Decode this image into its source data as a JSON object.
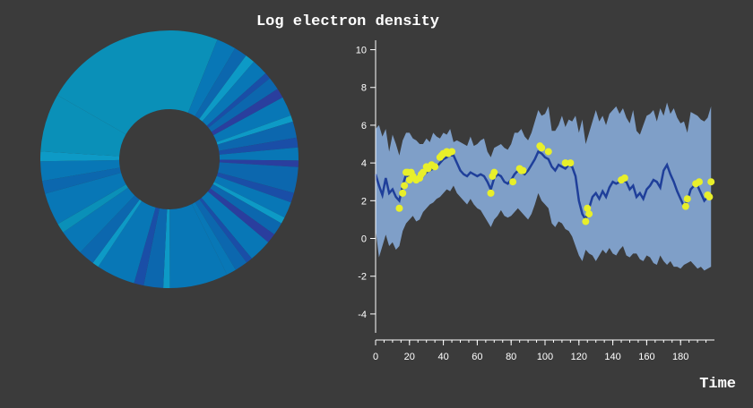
{
  "title": "Log electron density",
  "colors": {
    "background": "#3b3b3b",
    "band": "#7f9fc8",
    "mean_line": "#1f3f9a",
    "observed": "#e8ef2a",
    "axis": "#ffffff",
    "donut_palette": [
      "#0a90b8",
      "#0877b6",
      "#0c67ae",
      "#1a4ea7",
      "#2a3e9e",
      "#0d9ac6"
    ]
  },
  "chart_data": [
    {
      "type": "pie",
      "variant": "donut",
      "note_values": "segment sizes (unlabeled)",
      "slices": [
        {
          "value": 56,
          "color": "#0a90b8"
        },
        {
          "value": 6,
          "color": "#0877b6"
        },
        {
          "value": 4,
          "color": "#0c67ae"
        },
        {
          "value": 3,
          "color": "#0d9ac6"
        },
        {
          "value": 5,
          "color": "#0877b6"
        },
        {
          "value": 2,
          "color": "#1a4ea7"
        },
        {
          "value": 4,
          "color": "#0c67ae"
        },
        {
          "value": 3,
          "color": "#2a3e9e"
        },
        {
          "value": 6,
          "color": "#0877b6"
        },
        {
          "value": 2,
          "color": "#0d9ac6"
        },
        {
          "value": 5,
          "color": "#0c67ae"
        },
        {
          "value": 3,
          "color": "#1a4ea7"
        },
        {
          "value": 4,
          "color": "#0877b6"
        },
        {
          "value": 2,
          "color": "#2a3e9e"
        },
        {
          "value": 8,
          "color": "#0c67ae"
        },
        {
          "value": 3,
          "color": "#1a4ea7"
        },
        {
          "value": 5,
          "color": "#0877b6"
        },
        {
          "value": 2,
          "color": "#0d9ac6"
        },
        {
          "value": 4,
          "color": "#0c67ae"
        },
        {
          "value": 3,
          "color": "#2a3e9e"
        },
        {
          "value": 7,
          "color": "#0877b6"
        },
        {
          "value": 2,
          "color": "#1a4ea7"
        },
        {
          "value": 4,
          "color": "#0c67ae"
        },
        {
          "value": 3,
          "color": "#0877b6"
        },
        {
          "value": 18,
          "color": "#0877b6"
        },
        {
          "value": 2,
          "color": "#0d9ac6"
        },
        {
          "value": 6,
          "color": "#0c67ae"
        },
        {
          "value": 3,
          "color": "#1a4ea7"
        },
        {
          "value": 12,
          "color": "#0877b6"
        },
        {
          "value": 2,
          "color": "#0d9ac6"
        },
        {
          "value": 5,
          "color": "#0c67ae"
        },
        {
          "value": 8,
          "color": "#0877b6"
        },
        {
          "value": 3,
          "color": "#0a90b8"
        },
        {
          "value": 10,
          "color": "#0877b6"
        },
        {
          "value": 4,
          "color": "#0c67ae"
        },
        {
          "value": 6,
          "color": "#0877b6"
        },
        {
          "value": 3,
          "color": "#0d9ac6"
        },
        {
          "value": 18,
          "color": "#0a90b8"
        }
      ]
    },
    {
      "type": "line",
      "xlabel": "Time",
      "ylabel": "",
      "xlim": [
        0,
        200
      ],
      "ylim": [
        -5,
        10.5
      ],
      "xticks": [
        0,
        20,
        40,
        60,
        80,
        100,
        120,
        140,
        160,
        180
      ],
      "yticks": [
        -4,
        -2,
        0,
        2,
        4,
        6,
        8,
        10
      ],
      "grid": false,
      "mean": {
        "x": [
          0,
          2,
          4,
          6,
          8,
          10,
          12,
          14,
          16,
          18,
          20,
          22,
          24,
          26,
          28,
          30,
          32,
          34,
          36,
          38,
          40,
          42,
          44,
          46,
          48,
          50,
          52,
          54,
          56,
          58,
          60,
          62,
          64,
          66,
          68,
          70,
          72,
          74,
          76,
          78,
          80,
          82,
          84,
          86,
          88,
          90,
          92,
          94,
          96,
          98,
          100,
          102,
          104,
          106,
          108,
          110,
          112,
          114,
          116,
          118,
          120,
          122,
          124,
          126,
          128,
          130,
          132,
          134,
          136,
          138,
          140,
          142,
          144,
          146,
          148,
          150,
          152,
          154,
          156,
          158,
          160,
          162,
          164,
          166,
          168,
          170,
          172,
          174,
          176,
          178,
          180,
          182,
          184,
          186,
          188,
          190,
          192,
          194,
          196,
          198
        ],
        "y": [
          3.4,
          2.8,
          2.3,
          3.2,
          2.4,
          2.6,
          2.2,
          2.0,
          2.8,
          3.4,
          3.2,
          3.3,
          3.1,
          3.2,
          3.3,
          3.5,
          3.6,
          3.7,
          3.8,
          4.0,
          4.2,
          4.3,
          4.4,
          4.4,
          4.0,
          3.6,
          3.4,
          3.3,
          3.5,
          3.4,
          3.3,
          3.4,
          3.3,
          3.0,
          2.6,
          3.2,
          3.4,
          3.3,
          3.0,
          2.9,
          3.1,
          3.4,
          3.6,
          3.5,
          3.4,
          3.6,
          3.9,
          4.2,
          4.6,
          4.5,
          4.3,
          4.2,
          3.8,
          3.6,
          3.9,
          3.8,
          3.7,
          3.9,
          3.8,
          3.3,
          2.0,
          1.3,
          1.0,
          1.6,
          2.2,
          2.4,
          2.1,
          2.5,
          2.2,
          2.7,
          3.0,
          2.9,
          3.0,
          3.1,
          3.0,
          2.6,
          2.8,
          2.2,
          2.4,
          2.1,
          2.6,
          2.8,
          3.1,
          3.0,
          2.7,
          3.6,
          3.9,
          3.4,
          3.0,
          2.5,
          2.1,
          1.7,
          2.0,
          2.6,
          2.8,
          2.8,
          2.4,
          2.0,
          2.2,
          2.3
        ]
      },
      "band": {
        "upper": [
          5.8,
          6.0,
          5.4,
          5.8,
          4.6,
          5.5,
          5.0,
          4.4,
          5.2,
          5.6,
          5.6,
          5.3,
          5.2,
          5.0,
          5.0,
          5.3,
          5.1,
          5.6,
          5.4,
          5.3,
          5.6,
          5.5,
          5.8,
          5.1,
          5.2,
          5.1,
          5.0,
          4.9,
          5.4,
          4.9,
          5.0,
          5.2,
          5.3,
          4.6,
          4.3,
          4.8,
          4.9,
          5.0,
          4.8,
          4.7,
          5.0,
          5.6,
          5.6,
          5.8,
          5.4,
          5.2,
          5.6,
          6.2,
          6.8,
          6.5,
          6.6,
          7.0,
          5.7,
          5.7,
          6.0,
          6.5,
          5.9,
          6.3,
          6.2,
          6.5,
          5.6,
          6.3,
          5.0,
          5.6,
          6.2,
          6.8,
          6.2,
          6.5,
          6.0,
          6.6,
          6.8,
          7.0,
          6.6,
          6.9,
          6.4,
          6.1,
          6.8,
          5.7,
          5.5,
          6.0,
          6.5,
          6.6,
          6.8,
          6.2,
          6.9,
          6.5,
          7.2,
          6.6,
          6.9,
          6.4,
          6.1,
          6.2,
          5.6,
          6.7,
          6.6,
          6.5,
          6.3,
          6.2,
          6.4,
          7.0
        ],
        "lower": [
          0.5,
          -1.0,
          -0.4,
          0.2,
          -0.4,
          -0.2,
          -0.6,
          -0.4,
          0.4,
          0.8,
          1.0,
          1.2,
          0.9,
          1.0,
          1.4,
          1.6,
          1.8,
          1.9,
          2.1,
          2.2,
          2.4,
          2.6,
          2.5,
          2.8,
          2.4,
          2.2,
          2.0,
          1.8,
          2.1,
          1.8,
          1.6,
          1.5,
          1.2,
          0.9,
          0.6,
          1.0,
          1.2,
          1.5,
          1.2,
          1.1,
          1.2,
          1.4,
          1.6,
          1.4,
          1.2,
          1.0,
          1.3,
          1.8,
          2.4,
          2.0,
          1.8,
          1.6,
          0.8,
          0.6,
          0.9,
          0.8,
          0.5,
          0.4,
          0.1,
          -0.4,
          -0.9,
          -1.2,
          -0.6,
          -0.8,
          -0.9,
          -1.2,
          -0.9,
          -0.6,
          -0.8,
          -0.5,
          -0.8,
          -0.9,
          -0.6,
          -0.4,
          -0.9,
          -1.0,
          -0.8,
          -0.8,
          -1.1,
          -1.2,
          -0.9,
          -1.0,
          -1.3,
          -1.4,
          -0.9,
          -1.2,
          -1.4,
          -1.2,
          -1.5,
          -1.5,
          -1.6,
          -1.4,
          -1.3,
          -1.2,
          -1.4,
          -1.6,
          -1.5,
          -1.7,
          -1.6,
          -1.5
        ]
      },
      "observed": {
        "x": [
          14,
          16,
          17,
          18,
          19,
          20,
          21,
          22,
          24,
          26,
          27,
          28,
          30,
          31,
          33,
          35,
          38,
          39,
          40,
          42,
          43,
          45,
          68,
          69,
          70,
          81,
          85,
          86,
          87,
          97,
          98,
          102,
          112,
          115,
          124,
          125,
          126,
          145,
          147,
          183,
          184,
          189,
          191,
          196,
          197,
          198
        ],
        "y": [
          1.6,
          2.4,
          2.8,
          3.5,
          3.5,
          3.1,
          3.5,
          3.3,
          3.1,
          3.2,
          3.4,
          3.5,
          3.8,
          3.7,
          3.9,
          3.8,
          4.3,
          4.4,
          4.5,
          4.6,
          4.5,
          4.6,
          2.4,
          3.3,
          3.5,
          3.0,
          3.7,
          3.6,
          3.6,
          4.9,
          4.8,
          4.6,
          4.0,
          4.0,
          0.9,
          1.6,
          1.3,
          3.1,
          3.2,
          1.7,
          2.1,
          2.9,
          3.0,
          2.3,
          2.2,
          3.0
        ]
      }
    }
  ]
}
